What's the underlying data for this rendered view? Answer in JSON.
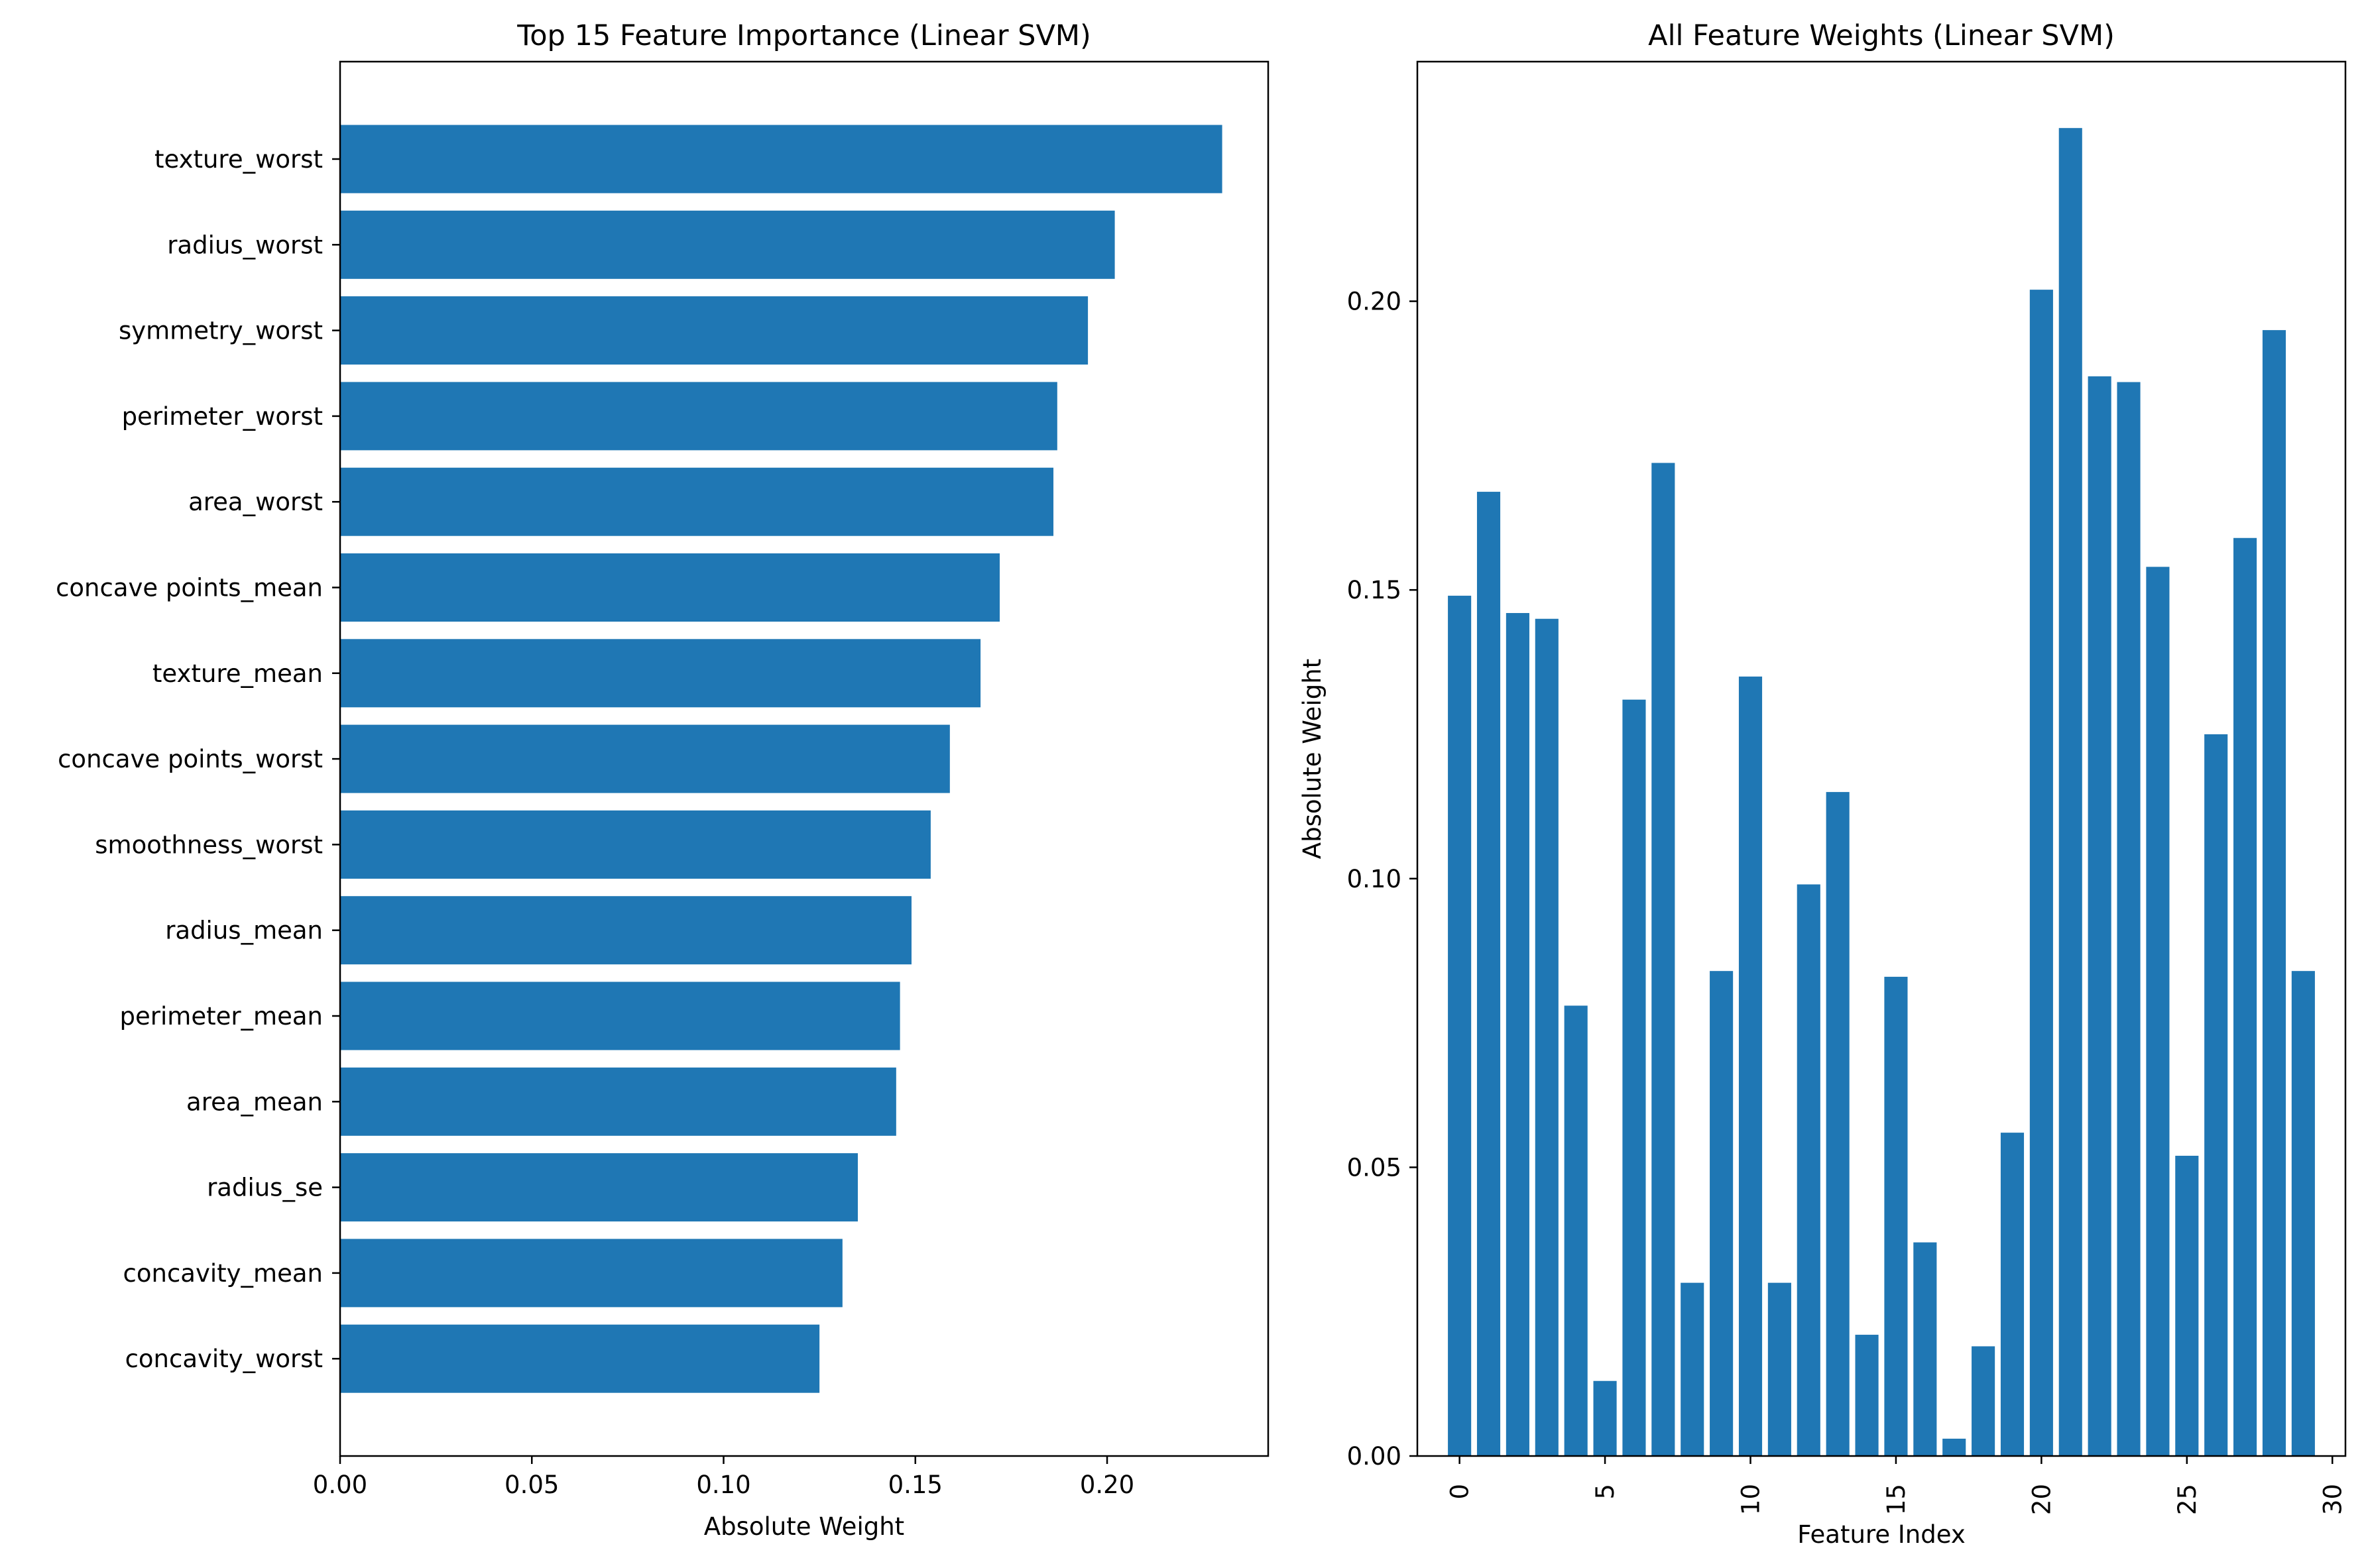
{
  "chart_data": [
    {
      "type": "bar",
      "orientation": "horizontal",
      "title": "Top 15 Feature Importance (Linear SVM)",
      "xlabel": "Absolute Weight",
      "ylabel": "",
      "xlim": [
        0,
        0.242
      ],
      "xticks": [
        "0.00",
        "0.05",
        "0.10",
        "0.15",
        "0.20"
      ],
      "xtick_values": [
        0,
        0.05,
        0.1,
        0.15,
        0.2
      ],
      "categories": [
        "texture_worst",
        "radius_worst",
        "symmetry_worst",
        "perimeter_worst",
        "area_worst",
        "concave points_mean",
        "texture_mean",
        "concave points_worst",
        "smoothness_worst",
        "radius_mean",
        "perimeter_mean",
        "area_mean",
        "radius_se",
        "concavity_mean",
        "concavity_worst"
      ],
      "values": [
        0.23,
        0.202,
        0.195,
        0.187,
        0.186,
        0.172,
        0.167,
        0.159,
        0.154,
        0.149,
        0.146,
        0.145,
        0.135,
        0.131,
        0.125
      ],
      "color": "#1f77b4",
      "grid": false
    },
    {
      "type": "bar",
      "title": "All Feature Weights (Linear SVM)",
      "xlabel": "Feature Index",
      "ylabel": "Absolute Weight",
      "ylim": [
        0,
        0.2415
      ],
      "xlim": [
        -1.45,
        30.45
      ],
      "xticks": [
        "0",
        "5",
        "10",
        "15",
        "20",
        "25",
        "30"
      ],
      "xtick_values": [
        0,
        5,
        10,
        15,
        20,
        25,
        30
      ],
      "yticks": [
        "0.00",
        "0.05",
        "0.10",
        "0.15",
        "0.20"
      ],
      "ytick_values": [
        0,
        0.05,
        0.1,
        0.15,
        0.2
      ],
      "x": [
        0,
        1,
        2,
        3,
        4,
        5,
        6,
        7,
        8,
        9,
        10,
        11,
        12,
        13,
        14,
        15,
        16,
        17,
        18,
        19,
        20,
        21,
        22,
        23,
        24,
        25,
        26,
        27,
        28,
        29
      ],
      "values": [
        0.149,
        0.167,
        0.146,
        0.145,
        0.078,
        0.013,
        0.131,
        0.172,
        0.03,
        0.084,
        0.135,
        0.03,
        0.099,
        0.115,
        0.021,
        0.083,
        0.037,
        0.003,
        0.019,
        0.056,
        0.202,
        0.23,
        0.187,
        0.186,
        0.154,
        0.052,
        0.125,
        0.159,
        0.195,
        0.084
      ],
      "color": "#1f77b4",
      "grid": false
    }
  ]
}
